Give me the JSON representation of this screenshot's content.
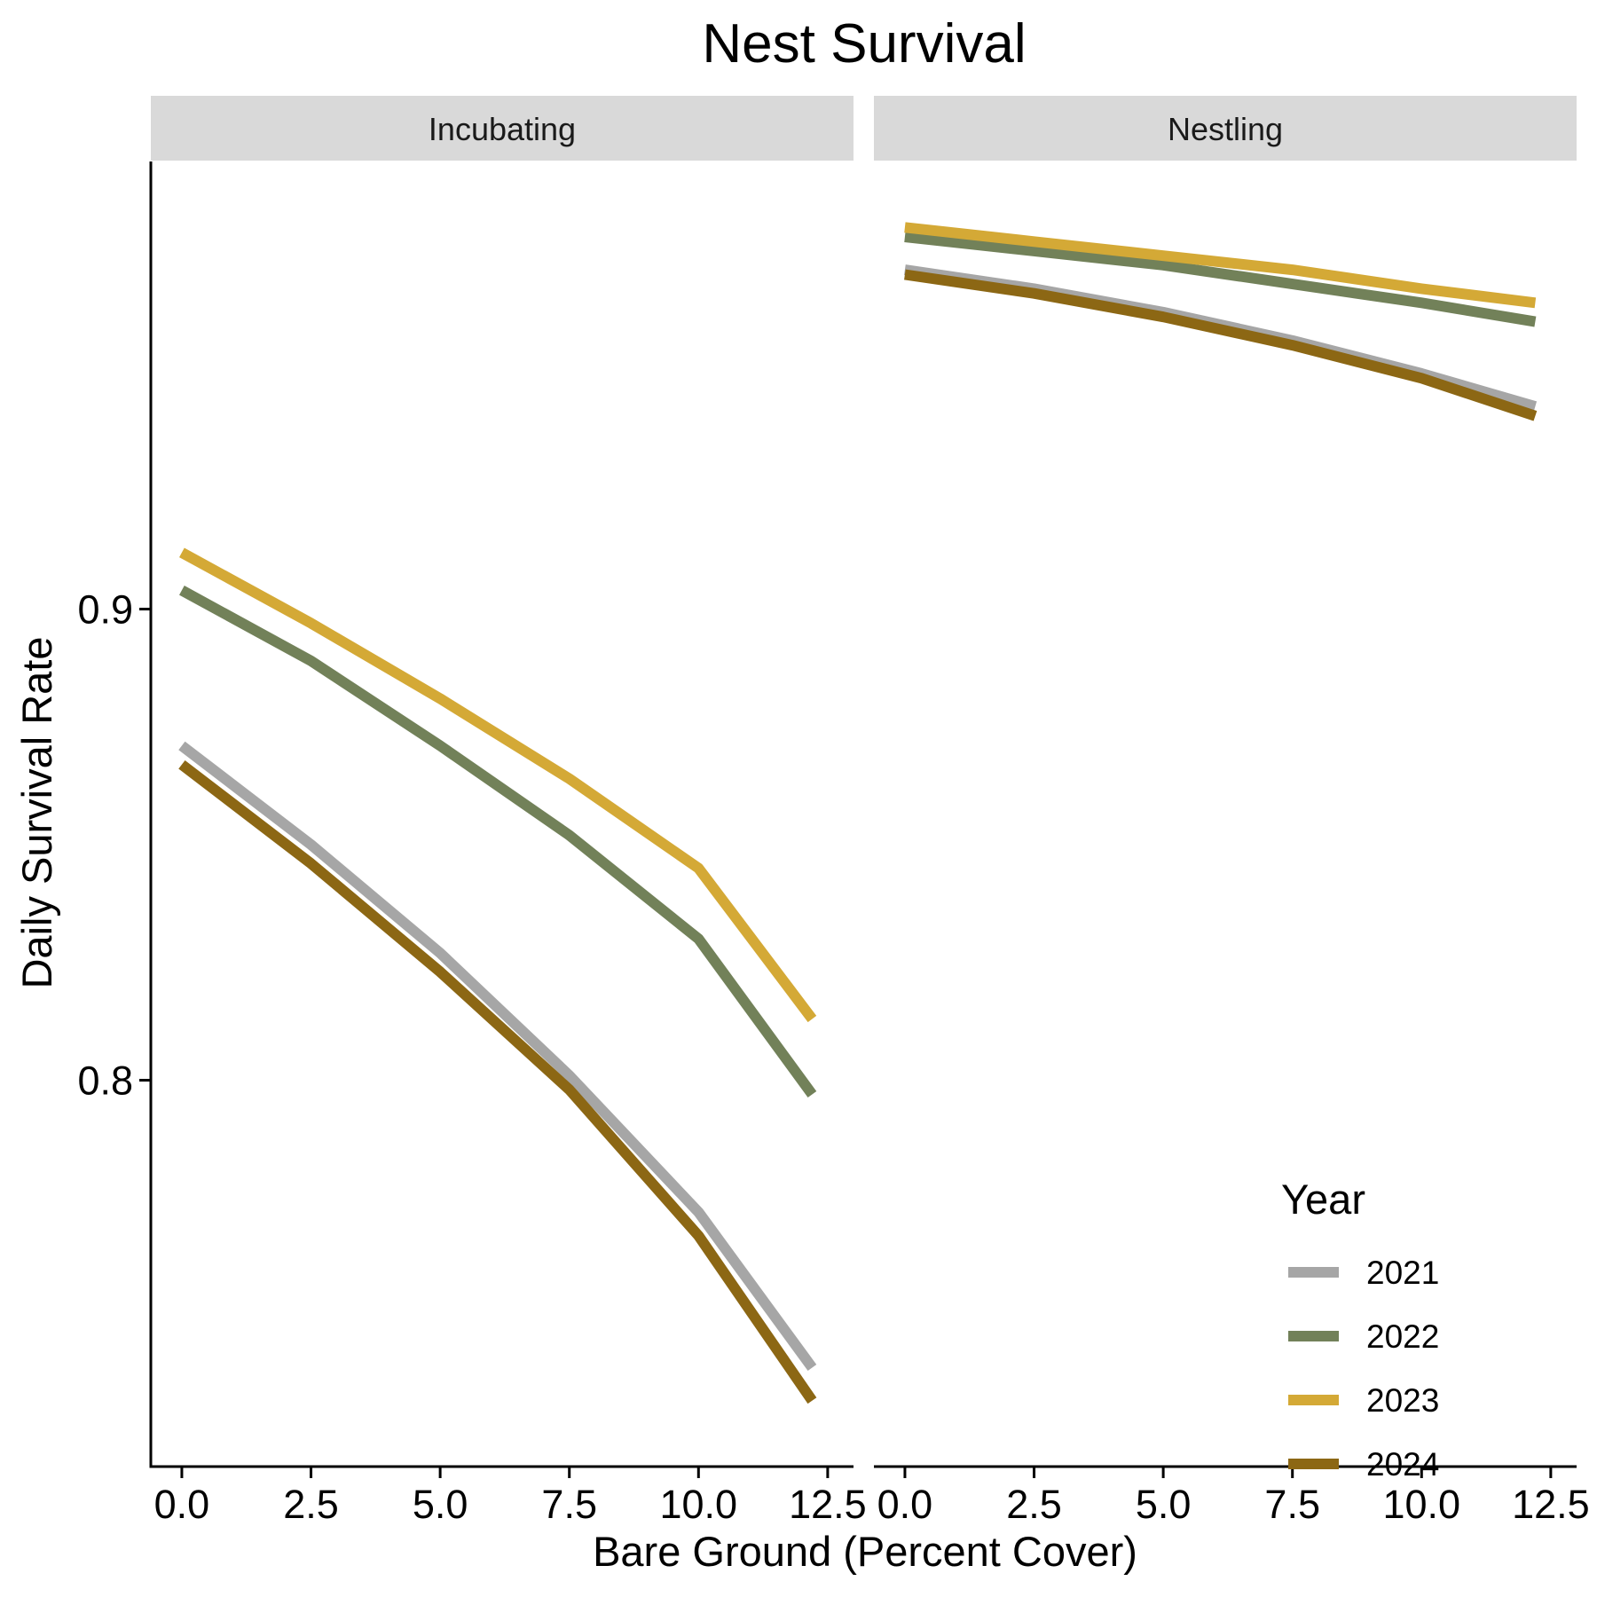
{
  "chart_data": {
    "type": "line",
    "title": "Nest Survival",
    "xlabel": "Bare Ground (Percent Cover)",
    "ylabel": "Daily Survival Rate",
    "xlim": [
      -0.6,
      13.0
    ],
    "ylim": [
      0.718,
      0.995
    ],
    "x_ticks": [
      0,
      2.5,
      5,
      7.5,
      10,
      12.5
    ],
    "x_tick_labels": [
      "0.0",
      "2.5",
      "5.0",
      "7.5",
      "10.0",
      "12.5"
    ],
    "y_ticks": [
      0.8,
      0.9
    ],
    "y_tick_labels": [
      "0.8",
      "0.9"
    ],
    "grid": false,
    "facets": [
      {
        "label": "Incubating",
        "series": [
          {
            "name": "2021",
            "x": [
              0,
              2.5,
              5,
              7.5,
              10,
              12.2
            ],
            "y": [
              0.871,
              0.85,
              0.827,
              0.801,
              0.772,
              0.739
            ]
          },
          {
            "name": "2022",
            "x": [
              0,
              2.5,
              5,
              7.5,
              10,
              12.2
            ],
            "y": [
              0.904,
              0.889,
              0.871,
              0.852,
              0.83,
              0.797
            ]
          },
          {
            "name": "2023",
            "x": [
              0,
              2.5,
              5,
              7.5,
              10,
              12.2
            ],
            "y": [
              0.912,
              0.897,
              0.881,
              0.864,
              0.845,
              0.813
            ]
          },
          {
            "name": "2024",
            "x": [
              0,
              2.5,
              5,
              7.5,
              10,
              12.2
            ],
            "y": [
              0.867,
              0.846,
              0.823,
              0.798,
              0.767,
              0.732
            ]
          }
        ]
      },
      {
        "label": "Nestling",
        "series": [
          {
            "name": "2021",
            "x": [
              0,
              2.5,
              5,
              7.5,
              10,
              12.2
            ],
            "y": [
              0.972,
              0.968,
              0.963,
              0.957,
              0.95,
              0.943
            ]
          },
          {
            "name": "2022",
            "x": [
              0,
              2.5,
              5,
              7.5,
              10,
              12.2
            ],
            "y": [
              0.979,
              0.976,
              0.973,
              0.969,
              0.965,
              0.961
            ]
          },
          {
            "name": "2023",
            "x": [
              0,
              2.5,
              5,
              7.5,
              10,
              12.2
            ],
            "y": [
              0.981,
              0.978,
              0.975,
              0.972,
              0.968,
              0.965
            ]
          },
          {
            "name": "2024",
            "x": [
              0,
              2.5,
              5,
              7.5,
              10,
              12.2
            ],
            "y": [
              0.971,
              0.967,
              0.962,
              0.956,
              0.949,
              0.941
            ]
          }
        ]
      }
    ],
    "legend": {
      "title": "Year",
      "placement": "bottom-right (inside)",
      "entries": [
        "2021",
        "2022",
        "2023",
        "2024"
      ]
    },
    "colors": {
      "2021": "#a6a6a6",
      "2022": "#728159",
      "2023": "#d4a936",
      "2024": "#8c6714"
    },
    "strip_background": "#d9d9d9"
  }
}
